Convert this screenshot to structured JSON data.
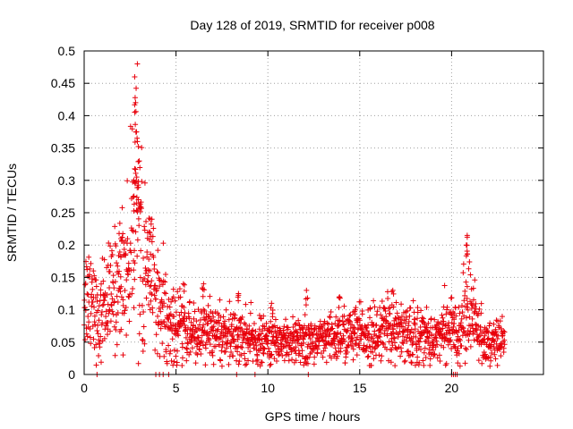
{
  "chart_data": {
    "type": "scatter",
    "title": "Day 128 of 2019, SRMTID for receiver p008",
    "xlabel": "GPS time / hours",
    "ylabel": "SRMTID / TECUs",
    "xlim": [
      0,
      25
    ],
    "ylim": [
      0,
      0.5
    ],
    "x_ticks": [
      0,
      5,
      10,
      15,
      20
    ],
    "x_tick_labels": [
      "0",
      "5",
      "10",
      "15",
      "20"
    ],
    "y_ticks": [
      0,
      0.05,
      0.1,
      0.15,
      0.2,
      0.25,
      0.3,
      0.35,
      0.4,
      0.45,
      0.5
    ],
    "y_tick_labels": [
      "0",
      "0.05",
      "0.1",
      "0.15",
      "0.2",
      "0.25",
      "0.3",
      "0.35",
      "0.4",
      "0.45",
      "0.5"
    ],
    "grid": true,
    "marker": "+",
    "color": "#e8000b",
    "series": [
      {
        "name": "SRMTID",
        "envelope": [
          {
            "x": 0.0,
            "y": 0.12
          },
          {
            "x": 0.5,
            "y": 0.13
          },
          {
            "x": 0.8,
            "y": 0.06
          },
          {
            "x": 1.0,
            "y": 0.11
          },
          {
            "x": 1.5,
            "y": 0.12
          },
          {
            "x": 2.0,
            "y": 0.15
          },
          {
            "x": 2.5,
            "y": 0.18
          },
          {
            "x": 2.8,
            "y": 0.3
          },
          {
            "x": 3.1,
            "y": 0.2
          },
          {
            "x": 3.5,
            "y": 0.15
          },
          {
            "x": 4.0,
            "y": 0.12
          },
          {
            "x": 4.5,
            "y": 0.08
          },
          {
            "x": 5.5,
            "y": 0.07
          },
          {
            "x": 6.5,
            "y": 0.065
          },
          {
            "x": 8.0,
            "y": 0.06
          },
          {
            "x": 9.5,
            "y": 0.05
          },
          {
            "x": 11.0,
            "y": 0.055
          },
          {
            "x": 13.0,
            "y": 0.05
          },
          {
            "x": 14.0,
            "y": 0.06
          },
          {
            "x": 16.0,
            "y": 0.065
          },
          {
            "x": 17.5,
            "y": 0.07
          },
          {
            "x": 19.0,
            "y": 0.055
          },
          {
            "x": 20.0,
            "y": 0.07
          },
          {
            "x": 20.5,
            "y": 0.07
          },
          {
            "x": 20.9,
            "y": 0.12
          },
          {
            "x": 21.3,
            "y": 0.07
          },
          {
            "x": 22.0,
            "y": 0.05
          },
          {
            "x": 22.8,
            "y": 0.05
          }
        ],
        "spikes": [
          {
            "x": 2.75,
            "y": 0.46
          },
          {
            "x": 2.8,
            "y": 0.42
          },
          {
            "x": 2.85,
            "y": 0.375
          },
          {
            "x": 2.9,
            "y": 0.36
          },
          {
            "x": 3.0,
            "y": 0.33
          },
          {
            "x": 2.7,
            "y": 0.3
          },
          {
            "x": 2.95,
            "y": 0.27
          },
          {
            "x": 3.6,
            "y": 0.24
          },
          {
            "x": 2.0,
            "y": 0.21
          },
          {
            "x": 20.85,
            "y": 0.215
          },
          {
            "x": 20.8,
            "y": 0.2
          },
          {
            "x": 5.4,
            "y": 0.14
          },
          {
            "x": 6.5,
            "y": 0.14
          },
          {
            "x": 12.1,
            "y": 0.13
          },
          {
            "x": 13.9,
            "y": 0.12
          },
          {
            "x": 16.8,
            "y": 0.13
          },
          {
            "x": 8.4,
            "y": 0.125
          },
          {
            "x": 10.2,
            "y": 0.11
          }
        ],
        "zeros": [
          0.7,
          3.9,
          4.1,
          4.3,
          4.6,
          8.3,
          9.3,
          12.2,
          20.0,
          20.1,
          20.2,
          20.3
        ]
      }
    ],
    "x_data_range": [
      0,
      22.9
    ]
  }
}
